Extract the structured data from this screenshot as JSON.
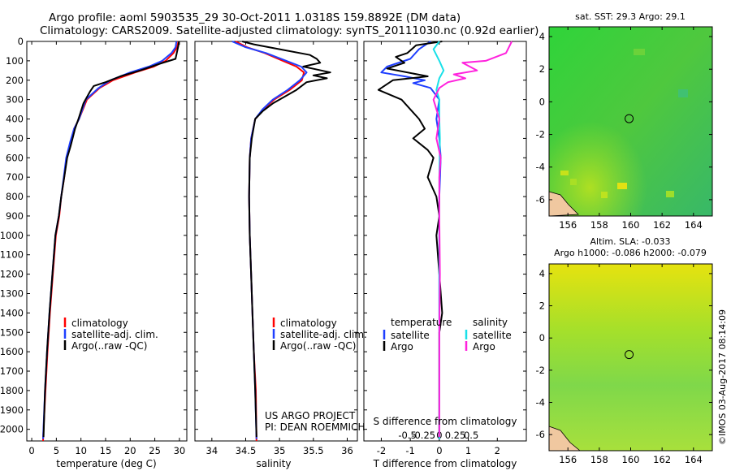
{
  "title_line1": "Argo profile: aoml 5903535_29 30-Oct-2011 1.0318S 159.8892E (DM data)",
  "title_line2": "Climatology: CARS2009. Satellite-adjusted climatology: synTS_20111030.nc (0.92d earlier)",
  "colors": {
    "red": "#ff0000",
    "blue": "#1f3fff",
    "black": "#000000",
    "cyan": "#18e0e8",
    "magenta": "#ff22dd"
  },
  "chart_data": [
    {
      "type": "line",
      "title": "",
      "xlabel": "temperature (deg C)",
      "ylabel": "",
      "xlim": [
        -1,
        31.5
      ],
      "ylim": [
        2060,
        0
      ],
      "xticks": [
        0,
        5,
        10,
        15,
        20,
        25,
        30
      ],
      "yticks": [
        0,
        100,
        200,
        300,
        400,
        500,
        600,
        700,
        800,
        900,
        1000,
        1100,
        1200,
        1300,
        1400,
        1500,
        1600,
        1700,
        1800,
        1900,
        2000
      ],
      "legend": [
        "climatology",
        "satellite-adj. clim.",
        "Argo(..raw -QC)"
      ],
      "series": [
        {
          "name": "climatology",
          "color": "red",
          "x": [
            29.8,
            29.5,
            28.8,
            27.2,
            24.8,
            21.0,
            16.5,
            13.8,
            11.2,
            9.6,
            8.6,
            7.9,
            7.1,
            6.6,
            6.0,
            5.6,
            4.9,
            4.3,
            3.7,
            3.2,
            2.8,
            2.4,
            2.3
          ],
          "y": [
            0,
            30,
            60,
            100,
            130,
            160,
            200,
            240,
            300,
            400,
            450,
            520,
            600,
            700,
            800,
            900,
            1000,
            1200,
            1400,
            1600,
            1800,
            2000,
            2060
          ]
        },
        {
          "name": "satellite-adj. clim.",
          "color": "blue",
          "x": [
            29.4,
            29.2,
            28.4,
            26.5,
            23.8,
            20.0,
            16.0,
            13.6,
            11.0,
            9.6,
            8.6,
            7.8,
            7.0,
            6.5,
            6.0,
            5.5,
            4.8,
            4.2,
            3.6,
            3.1,
            2.7,
            2.3
          ],
          "y": [
            0,
            30,
            60,
            100,
            130,
            160,
            200,
            240,
            300,
            400,
            450,
            520,
            600,
            700,
            800,
            900,
            1000,
            1200,
            1400,
            1600,
            1800,
            2050
          ]
        },
        {
          "name": "Argo(..raw -QC)",
          "color": "black",
          "x": [
            29.9,
            29.8,
            29.2,
            26.0,
            22.0,
            18.0,
            15.0,
            12.6,
            11.8,
            10.5,
            9.5,
            8.8,
            8.3,
            7.9,
            7.2,
            6.6,
            6.0,
            5.5,
            4.8,
            4.2,
            3.6,
            3.1,
            2.7,
            2.4
          ],
          "y": [
            0,
            20,
            90,
            115,
            150,
            180,
            210,
            230,
            260,
            320,
            400,
            450,
            500,
            540,
            600,
            700,
            800,
            900,
            1000,
            1200,
            1400,
            1600,
            1800,
            2040
          ]
        }
      ]
    },
    {
      "type": "line",
      "title": "",
      "xlabel": "salinity",
      "xlim": [
        33.75,
        36.15
      ],
      "ylim": [
        2060,
        0
      ],
      "xticks": [
        34,
        34.5,
        35,
        35.5,
        36
      ],
      "legend": [
        "climatology",
        "satellite-adj. clim.",
        "Argo(..raw -QC)"
      ],
      "annotation": [
        "US ARGO PROJECT",
        "PI: DEAN ROEMMICH"
      ],
      "series": [
        {
          "name": "climatology",
          "color": "red",
          "x": [
            34.35,
            34.52,
            34.78,
            35.05,
            35.25,
            35.36,
            35.33,
            35.15,
            34.92,
            34.76,
            34.64,
            34.58,
            34.56,
            34.55,
            34.56,
            34.58,
            34.6,
            34.62,
            34.65,
            34.66
          ],
          "y": [
            0,
            30,
            60,
            100,
            130,
            160,
            200,
            250,
            300,
            350,
            400,
            500,
            600,
            800,
            1000,
            1200,
            1400,
            1600,
            1800,
            2060
          ]
        },
        {
          "name": "satellite-adj. clim.",
          "color": "blue",
          "x": [
            34.3,
            34.5,
            34.8,
            35.1,
            35.32,
            35.4,
            35.3,
            35.12,
            34.9,
            34.75,
            34.64,
            34.58,
            34.56,
            34.55,
            34.56,
            34.58,
            34.6,
            34.62,
            34.64,
            34.66
          ],
          "y": [
            0,
            30,
            60,
            100,
            130,
            160,
            200,
            250,
            300,
            350,
            400,
            500,
            600,
            800,
            1000,
            1200,
            1400,
            1600,
            1800,
            2050
          ]
        },
        {
          "name": "Argo(..raw -QC)",
          "color": "black",
          "x": [
            34.45,
            34.62,
            35.0,
            35.45,
            35.55,
            35.6,
            35.35,
            35.75,
            35.5,
            35.7,
            35.4,
            35.25,
            35.1,
            34.9,
            34.75,
            34.64,
            34.59,
            34.56,
            34.55,
            34.56,
            34.58,
            34.6,
            34.62,
            34.64,
            34.66
          ],
          "y": [
            0,
            15,
            40,
            70,
            90,
            110,
            130,
            160,
            175,
            190,
            210,
            250,
            280,
            320,
            360,
            400,
            500,
            600,
            800,
            1000,
            1200,
            1400,
            1600,
            1800,
            2040
          ]
        }
      ]
    },
    {
      "type": "line",
      "title": "",
      "xlabel": "T difference from climatology",
      "x2label": "S difference from climatology",
      "xlim": [
        -2.6,
        3.0
      ],
      "ylim": [
        2060,
        0
      ],
      "xticks": [
        -2,
        -1,
        0,
        1,
        2
      ],
      "x2ticks": [
        -0.5,
        -0.25,
        0,
        0.25,
        0.5
      ],
      "x2tick_labels": [
        "-0.5",
        "-0.25",
        "0",
        "0.25",
        "0.5"
      ],
      "legend_headers": [
        "temperature",
        "salinity"
      ],
      "legend": [
        "satellite",
        "Argo",
        "satellite",
        "Argo"
      ],
      "series": [
        {
          "name": "temperature satellite",
          "color": "blue",
          "x": [
            -0.3,
            -0.7,
            -1.0,
            -1.8,
            -2.0,
            -1.2,
            -0.5,
            -0.9,
            -0.3,
            0.0,
            -0.1,
            0.0,
            0.05,
            0.0,
            0.0,
            0.0,
            0.0,
            0.0,
            0.0
          ],
          "y": [
            0,
            40,
            90,
            130,
            160,
            180,
            200,
            215,
            240,
            300,
            400,
            500,
            600,
            800,
            1000,
            1200,
            1500,
            1800,
            2050
          ]
        },
        {
          "name": "temperature Argo",
          "color": "black",
          "x": [
            0.1,
            -0.8,
            -1.1,
            -1.5,
            -1.2,
            -1.8,
            -0.4,
            -1.6,
            -2.1,
            -1.3,
            -0.7,
            -0.5,
            -0.9,
            -0.4,
            -0.2,
            -0.4,
            -0.1,
            0.0,
            -0.1,
            0.0,
            0.1,
            0.0,
            0.0,
            0.0,
            0.0
          ],
          "y": [
            0,
            20,
            60,
            80,
            110,
            140,
            180,
            200,
            250,
            300,
            400,
            450,
            500,
            560,
            600,
            700,
            800,
            900,
            1000,
            1200,
            1400,
            1500,
            1600,
            1800,
            2040
          ]
        },
        {
          "name": "salinity satellite",
          "color": "cyan",
          "x": [
            0.0,
            -0.2,
            0.0,
            0.15,
            0.0,
            -0.1,
            0.0,
            0.0,
            0.02,
            0.0,
            0.0,
            0.0,
            0.0,
            0.0,
            0.0
          ],
          "y": [
            0,
            40,
            100,
            150,
            190,
            250,
            300,
            400,
            500,
            700,
            900,
            1200,
            1500,
            1800,
            2050
          ]
        },
        {
          "name": "salinity Argo",
          "color": "magenta",
          "x": [
            2.5,
            2.3,
            1.6,
            0.8,
            1.3,
            0.5,
            0.9,
            0.3,
            0.0,
            -0.2,
            -0.1,
            0.0,
            -0.1,
            0.05,
            0.0,
            0.0,
            0.02,
            0.0,
            0.0,
            0.0
          ],
          "y": [
            0,
            60,
            100,
            110,
            150,
            170,
            190,
            210,
            240,
            300,
            350,
            400,
            500,
            600,
            700,
            900,
            1200,
            1500,
            1800,
            2040
          ]
        }
      ]
    },
    {
      "type": "heatmap",
      "title": "sat. SST: 29.3 Argo: 29.1",
      "xlim": [
        154.8,
        165.2
      ],
      "ylim": [
        -7,
        4.6
      ],
      "xticks": [
        156,
        158,
        160,
        162,
        164
      ],
      "yticks": [
        -6,
        -4,
        -2,
        0,
        2,
        4
      ],
      "marker": {
        "lon": 159.9,
        "lat": -1.03
      }
    },
    {
      "type": "heatmap",
      "title": [
        "Altim. SLA: -0.033",
        "Argo h1000: -0.086 h2000: -0.079"
      ],
      "xlim": [
        154.8,
        165.2
      ],
      "ylim": [
        -7,
        4.6
      ],
      "xticks": [
        156,
        158,
        160,
        162,
        164
      ],
      "yticks": [
        -6,
        -4,
        -2,
        0,
        2,
        4
      ],
      "marker": {
        "lon": 159.9,
        "lat": -1.03
      }
    }
  ],
  "footer_stamp": "©IMOS 03-Aug-2017 08:14:09"
}
